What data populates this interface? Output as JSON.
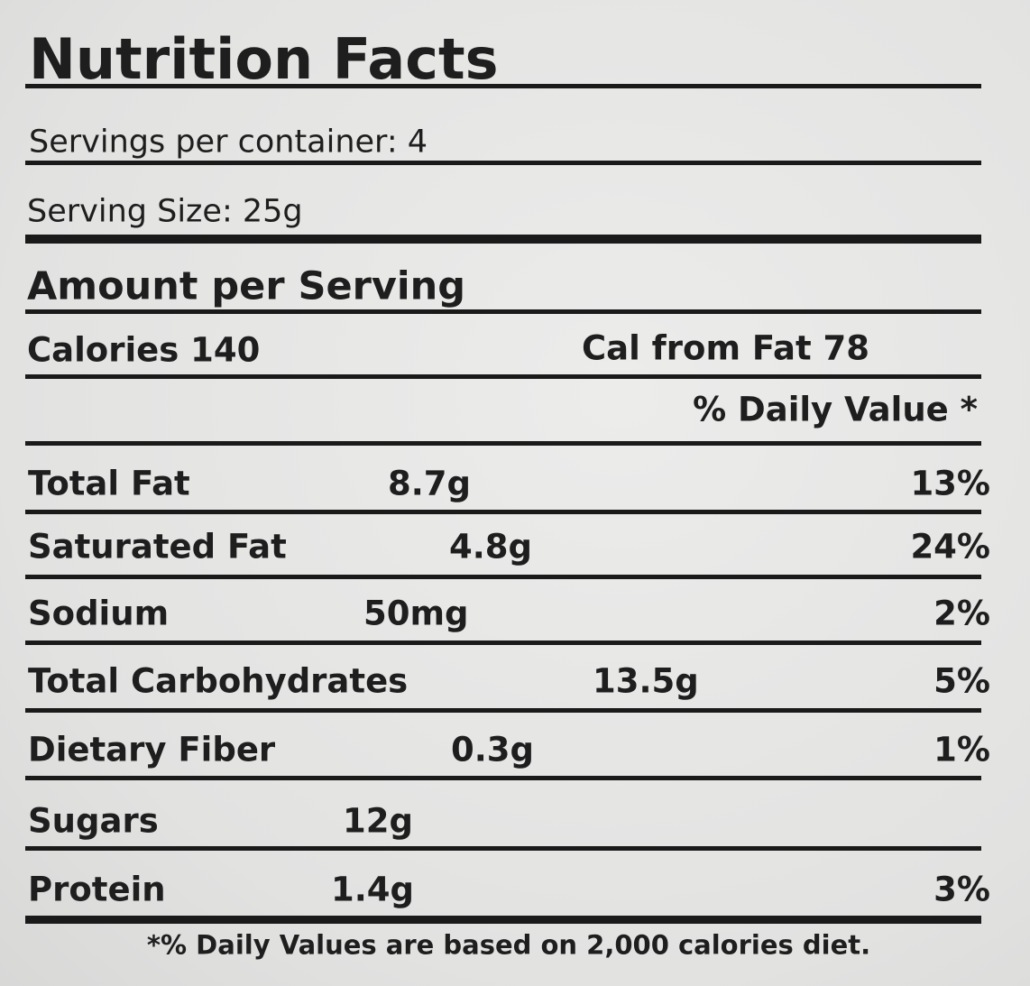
{
  "header": {
    "title": "Nutrition Facts",
    "servings": "Servings per container: 4",
    "serving_size": "Serving Size: 25g"
  },
  "amount_heading": "Amount per Serving",
  "calories": "Calories 140",
  "calories_from_fat": "Cal from Fat 78",
  "daily_value_heading": "% Daily Value *",
  "nutrients": [
    {
      "name": "Total Fat",
      "amount": "8.7g",
      "dv": "13%"
    },
    {
      "name": "Saturated Fat",
      "amount": "4.8g",
      "dv": "24%"
    },
    {
      "name": "Sodium",
      "amount": "50mg",
      "dv": "2%"
    },
    {
      "name": "Total Carbohydrates",
      "amount": "13.5g",
      "dv": "5%"
    },
    {
      "name": "Dietary Fiber",
      "amount": "0.3g",
      "dv": "1%"
    },
    {
      "name": "Sugars",
      "amount": "12g"
    },
    {
      "name": "Protein",
      "amount": "1.4g",
      "dv": "3%"
    }
  ],
  "footnote": "*% Daily Values are based on 2,000 calories diet."
}
